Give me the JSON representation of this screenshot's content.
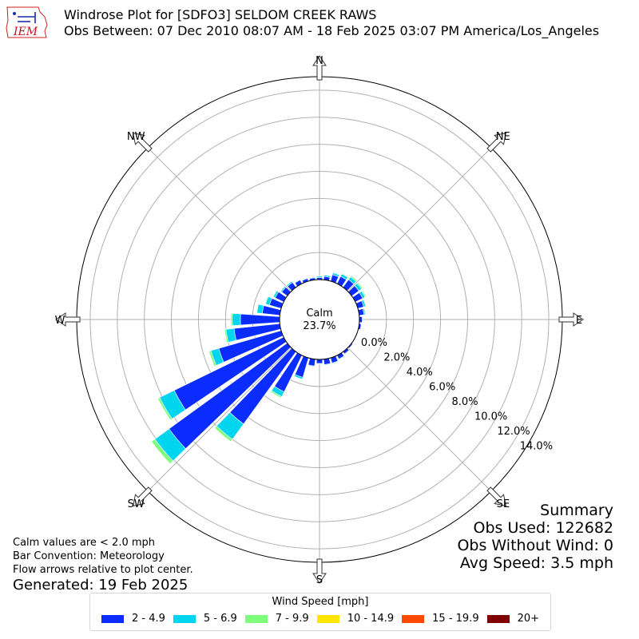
{
  "header": {
    "title_line1": "Windrose Plot for [SDFO3] SELDOM CREEK RAWS",
    "title_line2": "Obs Between: 07 Dec 2010 08:07 AM - 18 Feb 2025 03:07 PM America/Los_Angeles",
    "logo_text": "IEM"
  },
  "notes": {
    "line1": "Calm values are < 2.0 mph",
    "line2": "Bar Convention: Meteorology",
    "line3": "Flow arrows relative to plot center.",
    "generated": "Generated: 19 Feb 2025"
  },
  "summary": {
    "title": "Summary",
    "obs_used": "Obs Used: 122682",
    "obs_without_wind": "Obs Without Wind: 0",
    "avg_speed": "Avg Speed: 3.5 mph"
  },
  "chart_data": {
    "type": "windrose",
    "calm_label": "Calm",
    "calm_value": "23.7%",
    "direction_labels": [
      "N",
      "NE",
      "E",
      "SE",
      "S",
      "SW",
      "W",
      "NW"
    ],
    "radial_ticks": [
      "0.0%",
      "2.0%",
      "4.0%",
      "6.0%",
      "8.0%",
      "10.0%",
      "12.0%",
      "14.0%"
    ],
    "radial_tick_values": [
      0,
      2,
      4,
      6,
      8,
      10,
      12,
      14
    ],
    "rmax": 15,
    "legend_title": "Wind Speed [mph]",
    "legend": [
      {
        "label": "2 - 4.9",
        "color": "#0a2cff"
      },
      {
        "label": "5 - 6.9",
        "color": "#00d5f0"
      },
      {
        "label": "7 - 9.9",
        "color": "#7dff7a"
      },
      {
        "label": "10 - 14.9",
        "color": "#ffe600"
      },
      {
        "label": "15 - 19.9",
        "color": "#ff4a00"
      },
      {
        "label": "20+",
        "color": "#7f0000"
      }
    ],
    "directions_deg": [
      0,
      10,
      20,
      30,
      40,
      50,
      60,
      70,
      80,
      90,
      100,
      110,
      120,
      130,
      140,
      150,
      160,
      170,
      180,
      190,
      200,
      210,
      220,
      230,
      240,
      250,
      260,
      270,
      280,
      290,
      300,
      310,
      320,
      330,
      340,
      350
    ],
    "series": [
      {
        "name": "2 - 4.9",
        "values": [
          0.15,
          0.25,
          0.5,
          0.6,
          0.7,
          0.65,
          0.6,
          0.45,
          0.35,
          0.2,
          0.15,
          0.05,
          0.05,
          0.1,
          0.2,
          0.3,
          0.4,
          0.4,
          0.3,
          0.5,
          1.5,
          3.0,
          6.6,
          10.8,
          9.0,
          4.8,
          3.4,
          2.9,
          1.3,
          0.9,
          0.7,
          0.5,
          0.45,
          0.3,
          0.2,
          0.15
        ]
      },
      {
        "name": "5 - 6.9",
        "values": [
          0.1,
          0.1,
          0.15,
          0.2,
          0.25,
          0.25,
          0.2,
          0.15,
          0.1,
          0.05,
          0.02,
          0.0,
          0.0,
          0.02,
          0.02,
          0.05,
          0.05,
          0.05,
          0.05,
          0.05,
          0.15,
          0.4,
          1.4,
          1.3,
          1.2,
          0.6,
          0.6,
          0.6,
          0.4,
          0.3,
          0.15,
          0.1,
          0.1,
          0.05,
          0.05,
          0.05
        ]
      },
      {
        "name": "7 - 9.9",
        "values": [
          0,
          0,
          0.02,
          0.05,
          0.1,
          0.1,
          0.08,
          0.05,
          0,
          0,
          0,
          0,
          0,
          0,
          0,
          0,
          0,
          0,
          0,
          0,
          0.02,
          0.1,
          0.2,
          0.3,
          0.15,
          0.15,
          0.1,
          0.1,
          0.05,
          0.05,
          0.05,
          0.02,
          0.02,
          0,
          0,
          0
        ]
      },
      {
        "name": "10 - 14.9",
        "values": [
          0,
          0,
          0,
          0,
          0,
          0,
          0,
          0,
          0,
          0,
          0,
          0,
          0,
          0,
          0,
          0,
          0,
          0,
          0,
          0,
          0,
          0,
          0,
          0,
          0,
          0,
          0,
          0,
          0,
          0,
          0,
          0,
          0,
          0,
          0,
          0
        ]
      },
      {
        "name": "15 - 19.9",
        "values": [
          0,
          0,
          0,
          0,
          0,
          0,
          0,
          0,
          0,
          0,
          0,
          0,
          0,
          0,
          0,
          0,
          0,
          0,
          0,
          0,
          0,
          0,
          0,
          0,
          0,
          0,
          0,
          0,
          0,
          0,
          0,
          0,
          0,
          0,
          0,
          0
        ]
      },
      {
        "name": "20+",
        "values": [
          0,
          0,
          0,
          0,
          0,
          0,
          0,
          0,
          0,
          0,
          0,
          0,
          0,
          0,
          0,
          0,
          0,
          0,
          0,
          0,
          0,
          0,
          0,
          0,
          0,
          0,
          0,
          0,
          0,
          0,
          0,
          0,
          0,
          0,
          0,
          0
        ]
      }
    ],
    "grid": true,
    "legend_position": "bottom-center"
  }
}
